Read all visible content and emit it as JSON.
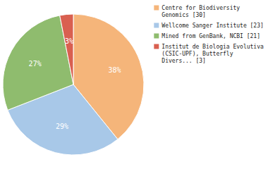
{
  "chart_data": {
    "type": "pie",
    "categories": [
      "Centre for Biodiversity\nGenomics [30]",
      "Wellcome Sanger Institute [23]",
      "Mined from GenBank, NCBI [21]",
      "Institut de Biologia Evolutiva\n(CSIC-UPF), Butterfly\nDivers... [3]"
    ],
    "values": [
      38,
      29,
      27,
      3
    ],
    "value_labels": [
      "38%",
      "29%",
      "27%",
      "3%"
    ],
    "colors": [
      "#f5b57a",
      "#a8c8e8",
      "#8fbc6e",
      "#d96050"
    ],
    "data_labels": true,
    "legend": "upper right"
  }
}
